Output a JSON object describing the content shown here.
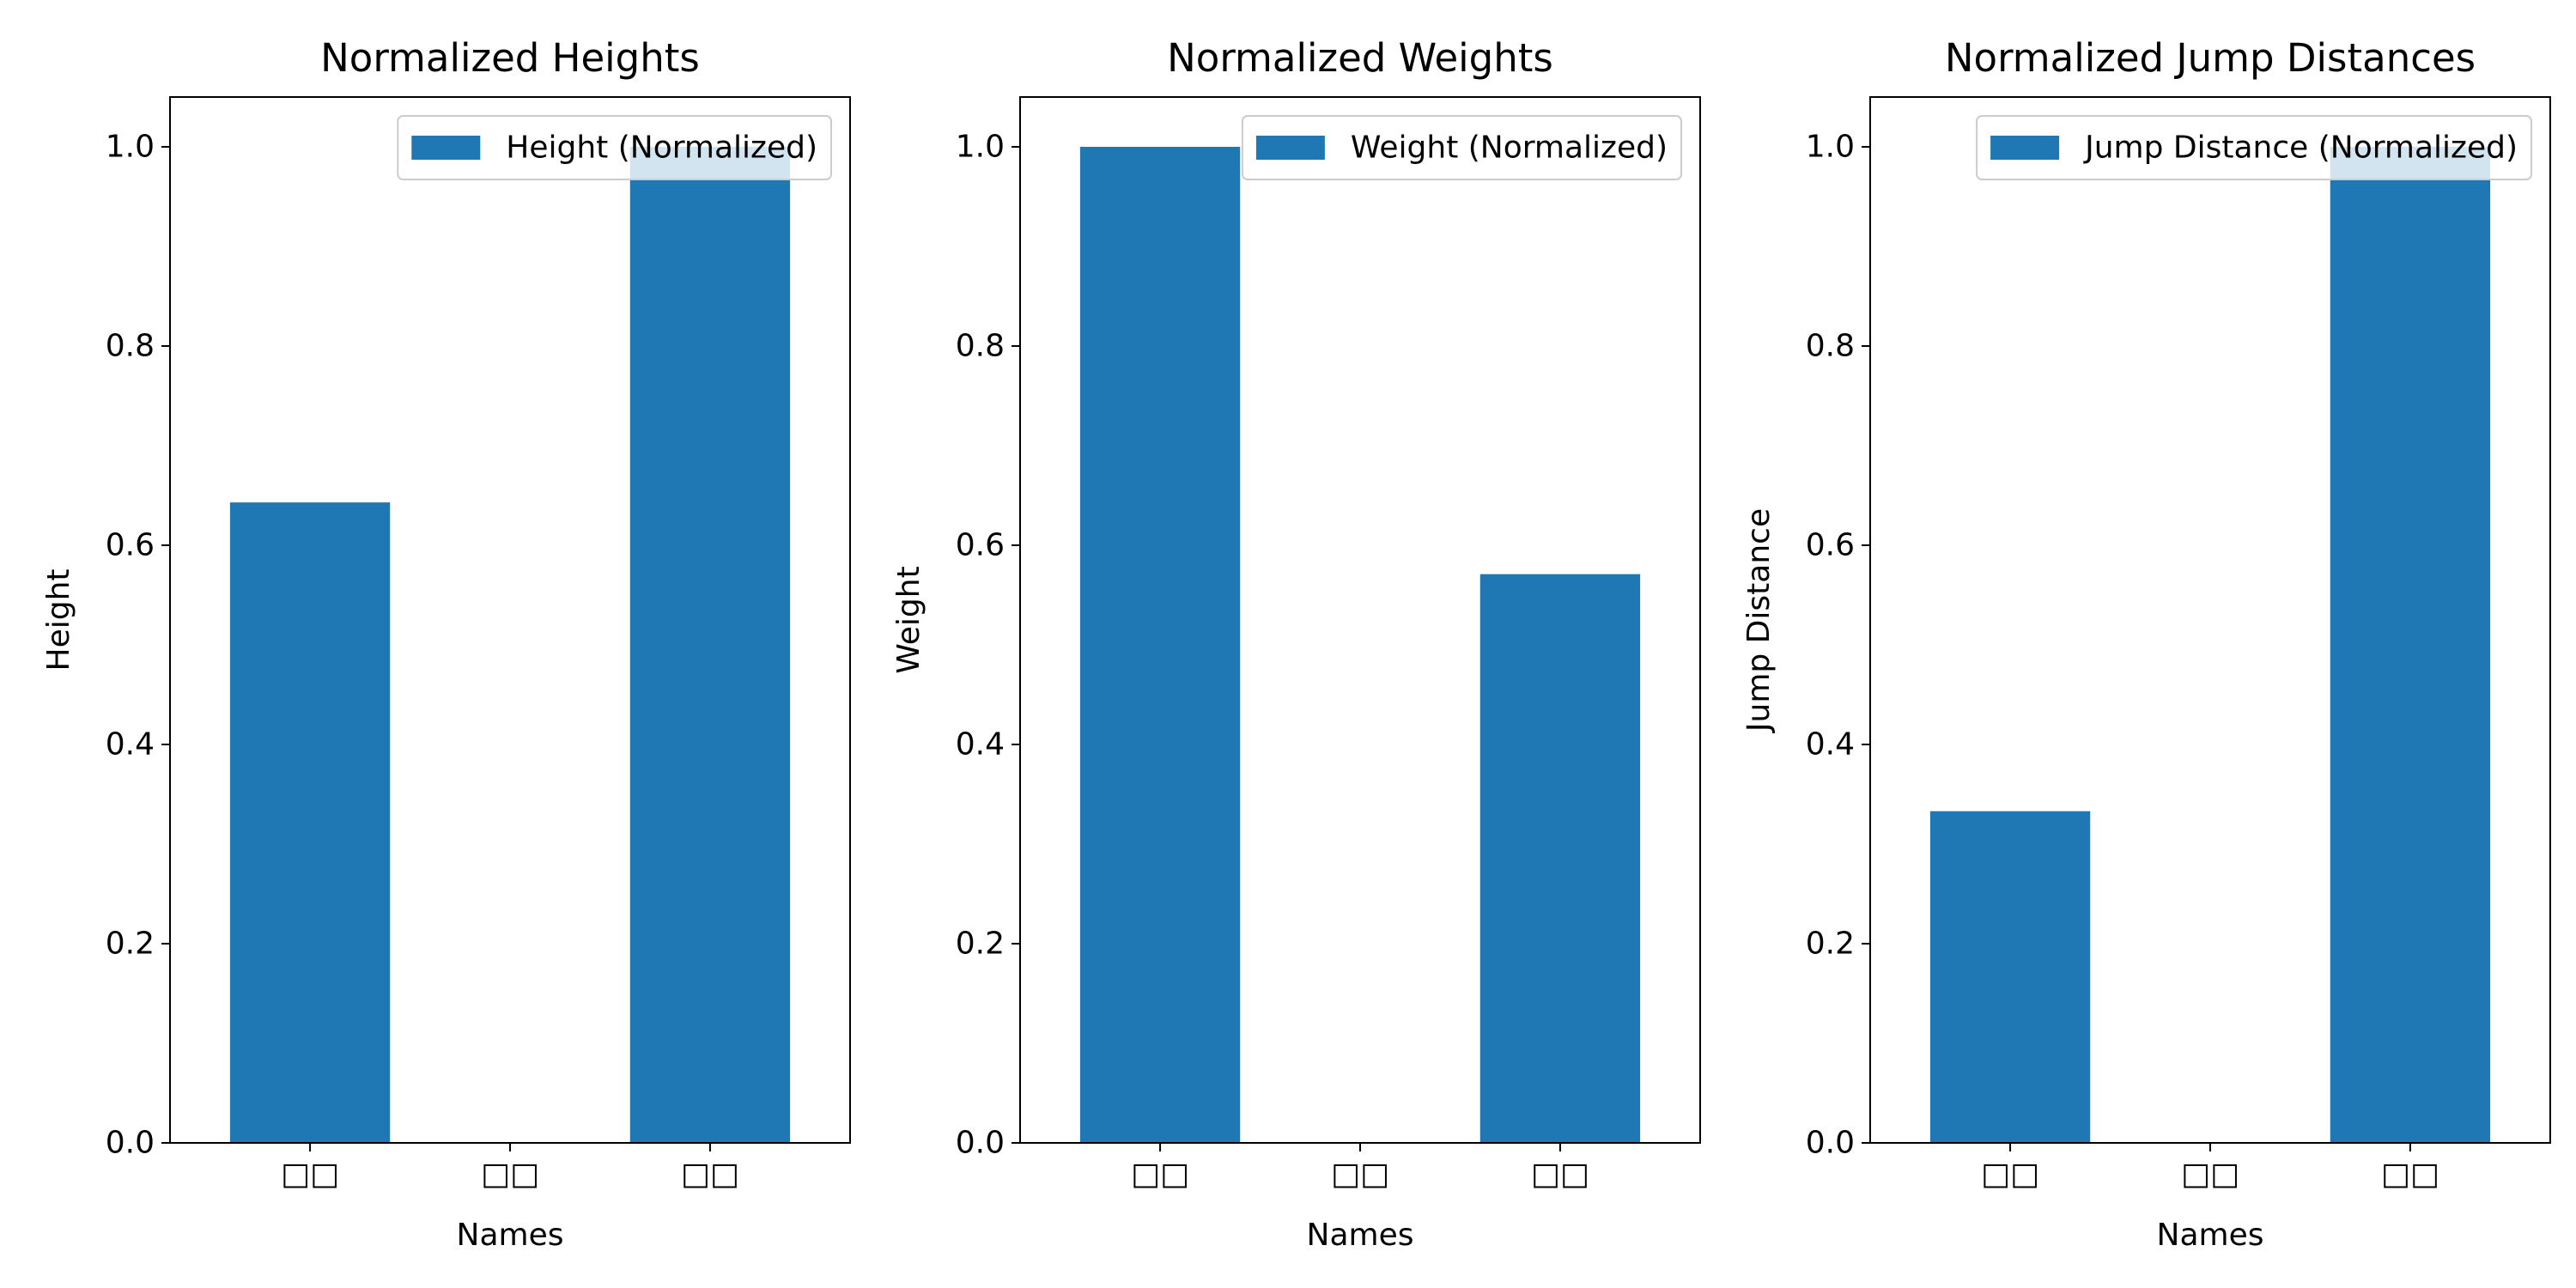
{
  "chart_data": [
    {
      "type": "bar",
      "title": "Normalized Heights",
      "xlabel": "Names",
      "ylabel": "Height",
      "categories": [
        "□□",
        "□□",
        "□□"
      ],
      "series": [
        {
          "name": "Height (Normalized)",
          "values": [
            0.643,
            0.0,
            1.0
          ]
        }
      ],
      "ylim": [
        0,
        1.05
      ],
      "yticks": [
        "0.0",
        "0.2",
        "0.4",
        "0.6",
        "0.8",
        "1.0"
      ],
      "grid": false,
      "legend_position": "top-right",
      "color": "#1f77b4"
    },
    {
      "type": "bar",
      "title": "Normalized Weights",
      "xlabel": "Names",
      "ylabel": "Weight",
      "categories": [
        "□□",
        "□□",
        "□□"
      ],
      "series": [
        {
          "name": "Weight (Normalized)",
          "values": [
            1.0,
            0.0,
            0.571
          ]
        }
      ],
      "ylim": [
        0,
        1.05
      ],
      "yticks": [
        "0.0",
        "0.2",
        "0.4",
        "0.6",
        "0.8",
        "1.0"
      ],
      "grid": false,
      "legend_position": "top-right",
      "color": "#1f77b4"
    },
    {
      "type": "bar",
      "title": "Normalized Jump Distances",
      "xlabel": "Names",
      "ylabel": "Jump Distance",
      "categories": [
        "□□",
        "□□",
        "□□"
      ],
      "series": [
        {
          "name": "Jump Distance (Normalized)",
          "values": [
            0.333,
            0.0,
            1.0
          ]
        }
      ],
      "ylim": [
        0,
        1.05
      ],
      "yticks": [
        "0.0",
        "0.2",
        "0.4",
        "0.6",
        "0.8",
        "1.0"
      ],
      "grid": false,
      "legend_position": "top-right",
      "color": "#1f77b4"
    }
  ]
}
